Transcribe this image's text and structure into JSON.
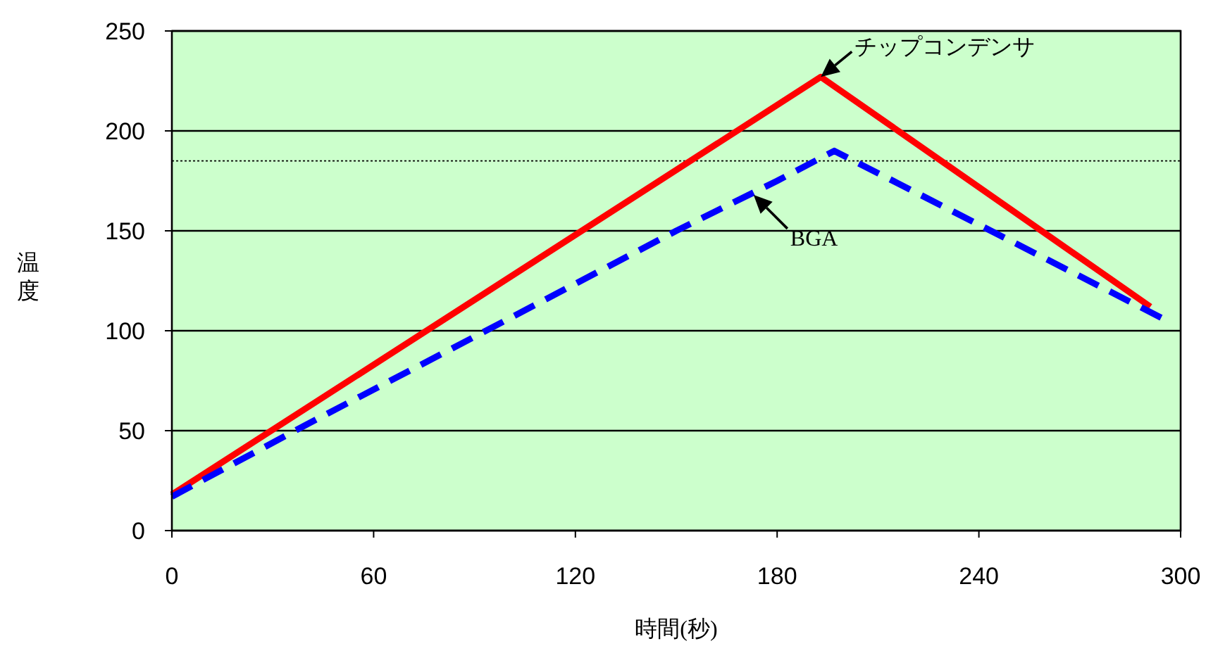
{
  "chart_data": {
    "type": "line",
    "xlabel": "時間(秒)",
    "ylabel": "温度",
    "xlim": [
      0,
      300
    ],
    "xticks": [
      0,
      60,
      120,
      180,
      240,
      300
    ],
    "ylim": [
      0,
      250
    ],
    "yticks": [
      0,
      50,
      100,
      150,
      200,
      250
    ],
    "grid": "y",
    "series": [
      {
        "color": "#ff0000",
        "line_style": "solid",
        "x": [
          0,
          193,
          291
        ],
        "values": [
          18,
          227,
          112
        ]
      },
      {
        "color": "#0000ff",
        "line_style": "dashed",
        "x": [
          0,
          40,
          90,
          150,
          180,
          197,
          296
        ],
        "values": [
          17,
          53,
          97,
          150,
          175,
          190,
          105
        ]
      }
    ],
    "ref_lines": [
      {
        "axis": "y",
        "value": 185,
        "label": null,
        "line_style": "dotted",
        "color": "#000000"
      }
    ],
    "annotations": [
      {
        "text": "チップコンデンサ",
        "x": 193,
        "y": 227
      },
      {
        "text": "BGA",
        "x": 173,
        "y": 168
      }
    ]
  }
}
